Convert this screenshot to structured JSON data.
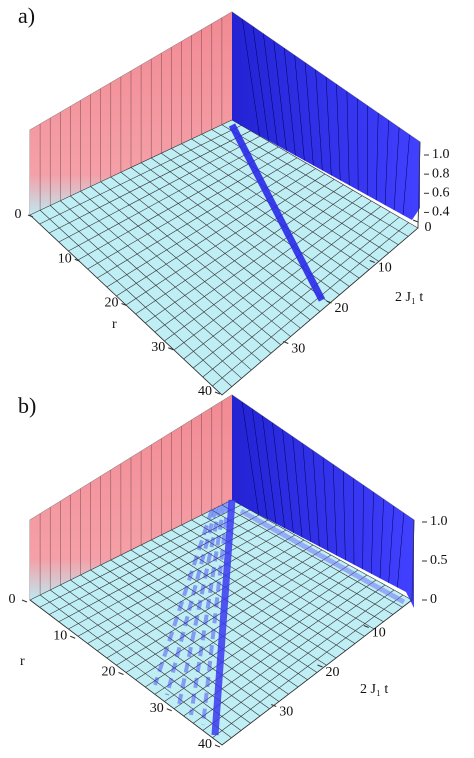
{
  "chart_data": [
    {
      "type": "surface3d",
      "panel_label": "a)",
      "r_label": "r",
      "t_label": "2 J₁ t",
      "rlim": [
        0,
        40
      ],
      "rticks": [
        0,
        10,
        20,
        30,
        40
      ],
      "tlim": [
        0,
        40
      ],
      "tticks": [
        0,
        10,
        20,
        30
      ],
      "zlim": [
        0.3,
        1.0
      ],
      "zticks": [
        {
          "value": 0.4,
          "label": "0.4"
        },
        {
          "value": 0.6,
          "label": "0.6"
        },
        {
          "value": 0.8,
          "label": "0.8"
        },
        {
          "value": 1.0,
          "label": "1.0"
        }
      ]
    },
    {
      "type": "surface3d",
      "panel_label": "b)",
      "r_label": "r",
      "t_label": "2 J₁ t",
      "rlim": [
        0,
        40
      ],
      "rticks": [
        0,
        10,
        20,
        30,
        40
      ],
      "tlim": [
        0,
        40
      ],
      "tticks": [
        10,
        20,
        30
      ],
      "zlim": [
        0,
        1.0
      ],
      "zticks": [
        0,
        0.5,
        {
          "value": 1.0,
          "label": "1.0"
        }
      ]
    }
  ]
}
